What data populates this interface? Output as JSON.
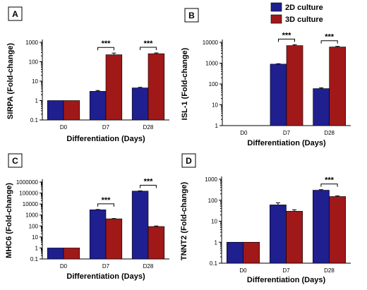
{
  "legend": {
    "placement": "top-right",
    "entries": [
      {
        "name": "2D culture",
        "color": "#1f1f8f"
      },
      {
        "name": "3D culture",
        "color": "#a01818"
      }
    ]
  },
  "chart_data": [
    {
      "type": "bar",
      "panel": "A",
      "scale": "log",
      "ylabel": "SIRPA (Fold-change)",
      "xlabel": "Differentiation (Days)",
      "categories": [
        "D0",
        "D7",
        "D28"
      ],
      "ylim": [
        0.1,
        1000
      ],
      "yticks": [
        "0.1",
        "1",
        "10",
        "100",
        "1000"
      ],
      "series": [
        {
          "name": "2D culture",
          "values": [
            1,
            3,
            4.5
          ],
          "errors": [
            0,
            0.3,
            0.3
          ]
        },
        {
          "name": "3D culture",
          "values": [
            1,
            230,
            260
          ],
          "errors": [
            0,
            50,
            25
          ]
        }
      ],
      "significance": [
        {
          "category": "D7",
          "label": "***"
        },
        {
          "category": "D28",
          "label": "***"
        }
      ]
    },
    {
      "type": "bar",
      "panel": "B",
      "scale": "log",
      "ylabel": "ISL-1 (Fold-change)",
      "xlabel": "Differentiation (Days)",
      "categories": [
        "D0",
        "D7",
        "D28"
      ],
      "ylim": [
        1,
        10000
      ],
      "yticks": [
        "1",
        "10",
        "100",
        "1000",
        "10000"
      ],
      "series": [
        {
          "name": "2D culture",
          "values": [
            1,
            900,
            60
          ],
          "errors": [
            0,
            40,
            5
          ]
        },
        {
          "name": "3D culture",
          "values": [
            1,
            7000,
            6000
          ],
          "errors": [
            0,
            700,
            400
          ]
        }
      ],
      "significance": [
        {
          "category": "D7",
          "label": "***"
        },
        {
          "category": "D28",
          "label": "***"
        }
      ]
    },
    {
      "type": "bar",
      "panel": "C",
      "scale": "log",
      "ylabel": "MHC6 (Fold-change)",
      "xlabel": "Differentiation (Days)",
      "categories": [
        "D0",
        "D7",
        "D28"
      ],
      "ylim": [
        0.1,
        1000000
      ],
      "yticks": [
        "0.1",
        "1",
        "10",
        "100",
        "1000",
        "10000",
        "100000",
        "1000000"
      ],
      "series": [
        {
          "name": "2D culture",
          "values": [
            1,
            3000,
            150000
          ],
          "errors": [
            0,
            200,
            8000
          ]
        },
        {
          "name": "3D culture",
          "values": [
            1,
            450,
            90
          ],
          "errors": [
            0,
            30,
            10
          ]
        }
      ],
      "significance": [
        {
          "category": "D7",
          "label": "***"
        },
        {
          "category": "D28",
          "label": "***"
        }
      ]
    },
    {
      "type": "bar",
      "panel": "D",
      "scale": "log",
      "ylabel": "TNNT2 (Fold-change)",
      "xlabel": "Differentiation (Days)",
      "categories": [
        "D0",
        "D7",
        "D28"
      ],
      "ylim": [
        0.1,
        1000
      ],
      "yticks": [
        "0.1",
        "1",
        "10",
        "100",
        "1000"
      ],
      "series": [
        {
          "name": "2D culture",
          "values": [
            1,
            60,
            300
          ],
          "errors": [
            0,
            15,
            20
          ]
        },
        {
          "name": "3D culture",
          "values": [
            1,
            30,
            150
          ],
          "errors": [
            0,
            5,
            10
          ]
        }
      ],
      "significance": [
        {
          "category": "D28",
          "label": "***"
        }
      ]
    }
  ]
}
